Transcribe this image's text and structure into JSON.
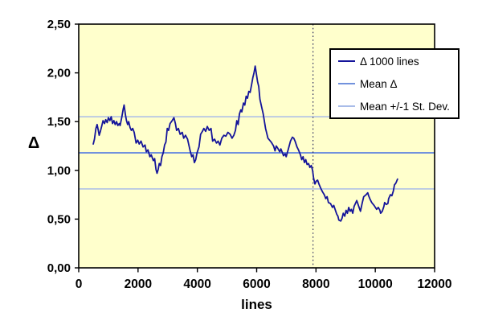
{
  "colors": {
    "page_bg": "#ffffff",
    "plot_bg": "#ffffcc",
    "series": "#14149a",
    "mean_line": "#7292dd",
    "sd_line": "#a9bce9",
    "vline": "#2e2e5e",
    "axis": "#000000",
    "text": "#000000",
    "legend_bg": "#ffffff",
    "legend_border": "#000000"
  },
  "chart_data": {
    "type": "line",
    "title": "",
    "xlabel": "lines",
    "ylabel": "Δ",
    "xlim": [
      0,
      12000
    ],
    "ylim": [
      0,
      2.5
    ],
    "x_ticks": [
      0,
      2000,
      4000,
      6000,
      8000,
      10000,
      12000
    ],
    "x_tick_labels": [
      "0",
      "2000",
      "4000",
      "6000",
      "8000",
      "10000",
      "12000"
    ],
    "y_ticks": [
      0,
      0.5,
      1.0,
      1.5,
      2.0,
      2.5
    ],
    "y_tick_labels": [
      "0,00",
      "0,50",
      "1,00",
      "1,50",
      "2,00",
      "2,50"
    ],
    "grid": false,
    "legend_position": "upper-right",
    "mean": 1.18,
    "mean_plus_sd": 1.55,
    "mean_minus_sd": 0.81,
    "vline_x": 7900,
    "legend": [
      {
        "label": "Δ 1000 lines",
        "color": "#14149a",
        "thickness": 2
      },
      {
        "label": "Mean Δ",
        "color": "#7292dd",
        "thickness": 2
      },
      {
        "label": "Mean +/-1 St. Dev.",
        "color": "#a9bce9",
        "thickness": 2
      }
    ],
    "series": [
      {
        "name": "Δ 1000 lines",
        "points": [
          [
            490,
            1.27
          ],
          [
            530,
            1.32
          ],
          [
            580,
            1.43
          ],
          [
            620,
            1.47
          ],
          [
            660,
            1.41
          ],
          [
            690,
            1.36
          ],
          [
            730,
            1.4
          ],
          [
            780,
            1.46
          ],
          [
            820,
            1.51
          ],
          [
            870,
            1.48
          ],
          [
            910,
            1.52
          ],
          [
            960,
            1.49
          ],
          [
            1000,
            1.54
          ],
          [
            1050,
            1.51
          ],
          [
            1095,
            1.55
          ],
          [
            1140,
            1.48
          ],
          [
            1185,
            1.51
          ],
          [
            1230,
            1.47
          ],
          [
            1275,
            1.5
          ],
          [
            1320,
            1.46
          ],
          [
            1365,
            1.48
          ],
          [
            1395,
            1.46
          ],
          [
            1455,
            1.55
          ],
          [
            1500,
            1.63
          ],
          [
            1530,
            1.67
          ],
          [
            1575,
            1.57
          ],
          [
            1610,
            1.51
          ],
          [
            1650,
            1.47
          ],
          [
            1685,
            1.5
          ],
          [
            1730,
            1.44
          ],
          [
            1775,
            1.41
          ],
          [
            1820,
            1.43
          ],
          [
            1870,
            1.39
          ],
          [
            1935,
            1.28
          ],
          [
            1990,
            1.31
          ],
          [
            2040,
            1.27
          ],
          [
            2100,
            1.3
          ],
          [
            2170,
            1.24
          ],
          [
            2235,
            1.26
          ],
          [
            2280,
            1.19
          ],
          [
            2335,
            1.21
          ],
          [
            2400,
            1.14
          ],
          [
            2445,
            1.16
          ],
          [
            2515,
            1.1
          ],
          [
            2560,
            1.12
          ],
          [
            2605,
            1.01
          ],
          [
            2640,
            0.97
          ],
          [
            2680,
            1.01
          ],
          [
            2715,
            1.07
          ],
          [
            2760,
            1.05
          ],
          [
            2805,
            1.14
          ],
          [
            2850,
            1.18
          ],
          [
            2895,
            1.26
          ],
          [
            2940,
            1.29
          ],
          [
            2985,
            1.43
          ],
          [
            3030,
            1.41
          ],
          [
            3080,
            1.48
          ],
          [
            3150,
            1.51
          ],
          [
            3210,
            1.54
          ],
          [
            3260,
            1.48
          ],
          [
            3300,
            1.41
          ],
          [
            3360,
            1.43
          ],
          [
            3420,
            1.37
          ],
          [
            3490,
            1.39
          ],
          [
            3540,
            1.33
          ],
          [
            3600,
            1.36
          ],
          [
            3670,
            1.32
          ],
          [
            3750,
            1.21
          ],
          [
            3810,
            1.14
          ],
          [
            3855,
            1.16
          ],
          [
            3900,
            1.08
          ],
          [
            3945,
            1.11
          ],
          [
            3990,
            1.18
          ],
          [
            4055,
            1.24
          ],
          [
            4110,
            1.37
          ],
          [
            4170,
            1.4
          ],
          [
            4220,
            1.43
          ],
          [
            4280,
            1.4
          ],
          [
            4335,
            1.45
          ],
          [
            4400,
            1.41
          ],
          [
            4460,
            1.43
          ],
          [
            4515,
            1.3
          ],
          [
            4580,
            1.32
          ],
          [
            4645,
            1.28
          ],
          [
            4700,
            1.3
          ],
          [
            4760,
            1.26
          ],
          [
            4825,
            1.33
          ],
          [
            4895,
            1.36
          ],
          [
            4960,
            1.35
          ],
          [
            5030,
            1.39
          ],
          [
            5105,
            1.37
          ],
          [
            5170,
            1.33
          ],
          [
            5230,
            1.36
          ],
          [
            5285,
            1.41
          ],
          [
            5330,
            1.51
          ],
          [
            5375,
            1.47
          ],
          [
            5420,
            1.58
          ],
          [
            5465,
            1.62
          ],
          [
            5500,
            1.6
          ],
          [
            5555,
            1.69
          ],
          [
            5600,
            1.67
          ],
          [
            5645,
            1.76
          ],
          [
            5690,
            1.74
          ],
          [
            5735,
            1.81
          ],
          [
            5780,
            1.8
          ],
          [
            5830,
            1.88
          ],
          [
            5870,
            1.95
          ],
          [
            5910,
            2.0
          ],
          [
            5950,
            2.07
          ],
          [
            5990,
            1.99
          ],
          [
            6030,
            1.91
          ],
          [
            6070,
            1.86
          ],
          [
            6110,
            1.73
          ],
          [
            6160,
            1.66
          ],
          [
            6220,
            1.58
          ],
          [
            6300,
            1.43
          ],
          [
            6380,
            1.33
          ],
          [
            6490,
            1.29
          ],
          [
            6570,
            1.25
          ],
          [
            6620,
            1.2
          ],
          [
            6660,
            1.25
          ],
          [
            6705,
            1.23
          ],
          [
            6780,
            1.19
          ],
          [
            6815,
            1.22
          ],
          [
            6870,
            1.18
          ],
          [
            6905,
            1.15
          ],
          [
            6960,
            1.17
          ],
          [
            6995,
            1.14
          ],
          [
            7070,
            1.22
          ],
          [
            7140,
            1.3
          ],
          [
            7205,
            1.34
          ],
          [
            7250,
            1.33
          ],
          [
            7295,
            1.3
          ],
          [
            7360,
            1.24
          ],
          [
            7410,
            1.21
          ],
          [
            7475,
            1.16
          ],
          [
            7520,
            1.11
          ],
          [
            7565,
            1.14
          ],
          [
            7610,
            1.08
          ],
          [
            7655,
            1.11
          ],
          [
            7700,
            1.06
          ],
          [
            7750,
            1.07
          ],
          [
            7795,
            1.03
          ],
          [
            7840,
            1.05
          ],
          [
            7885,
            1.0
          ],
          [
            7920,
            0.92
          ],
          [
            7965,
            0.86
          ],
          [
            8010,
            0.89
          ],
          [
            8055,
            0.9
          ],
          [
            8100,
            0.86
          ],
          [
            8170,
            0.81
          ],
          [
            8220,
            0.78
          ],
          [
            8280,
            0.75
          ],
          [
            8330,
            0.71
          ],
          [
            8375,
            0.73
          ],
          [
            8420,
            0.67
          ],
          [
            8490,
            0.66
          ],
          [
            8555,
            0.62
          ],
          [
            8600,
            0.64
          ],
          [
            8645,
            0.6
          ],
          [
            8700,
            0.55
          ],
          [
            8740,
            0.53
          ],
          [
            8770,
            0.49
          ],
          [
            8835,
            0.48
          ],
          [
            8880,
            0.51
          ],
          [
            8920,
            0.56
          ],
          [
            8970,
            0.53
          ],
          [
            9015,
            0.59
          ],
          [
            9060,
            0.56
          ],
          [
            9105,
            0.62
          ],
          [
            9150,
            0.58
          ],
          [
            9195,
            0.6
          ],
          [
            9240,
            0.56
          ],
          [
            9285,
            0.63
          ],
          [
            9330,
            0.66
          ],
          [
            9375,
            0.69
          ],
          [
            9420,
            0.65
          ],
          [
            9465,
            0.61
          ],
          [
            9500,
            0.58
          ],
          [
            9555,
            0.66
          ],
          [
            9610,
            0.73
          ],
          [
            9690,
            0.75
          ],
          [
            9745,
            0.77
          ],
          [
            9775,
            0.74
          ],
          [
            9830,
            0.7
          ],
          [
            9880,
            0.67
          ],
          [
            9960,
            0.64
          ],
          [
            10045,
            0.6
          ],
          [
            10100,
            0.62
          ],
          [
            10155,
            0.59
          ],
          [
            10180,
            0.56
          ],
          [
            10235,
            0.58
          ],
          [
            10290,
            0.63
          ],
          [
            10315,
            0.67
          ],
          [
            10370,
            0.65
          ],
          [
            10425,
            0.66
          ],
          [
            10450,
            0.71
          ],
          [
            10510,
            0.75
          ],
          [
            10560,
            0.74
          ],
          [
            10610,
            0.79
          ],
          [
            10645,
            0.85
          ],
          [
            10695,
            0.87
          ],
          [
            10750,
            0.91
          ]
        ]
      }
    ]
  }
}
